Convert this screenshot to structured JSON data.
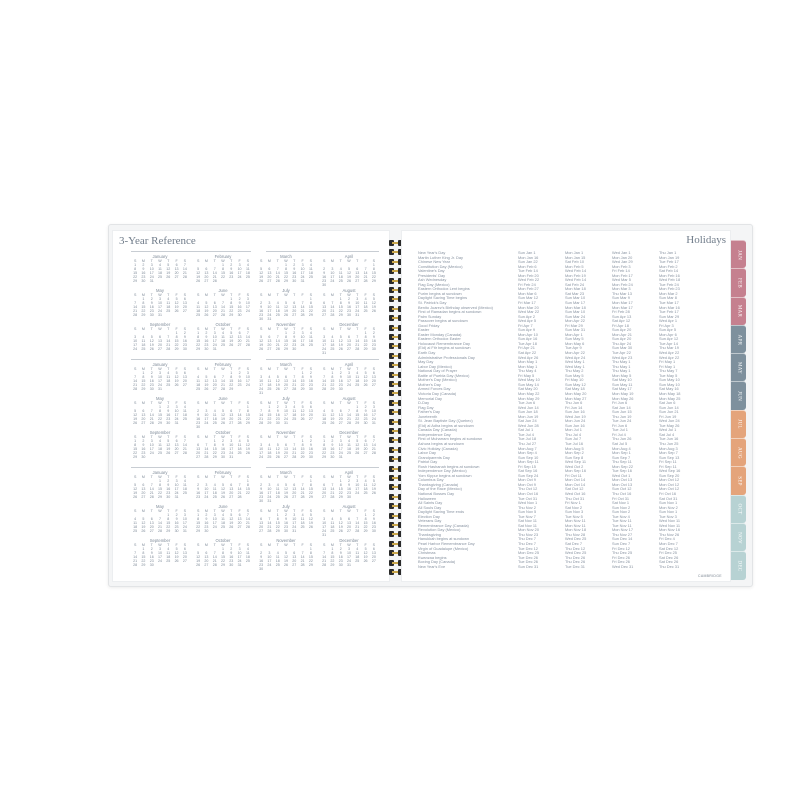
{
  "left_page": {
    "title": "3-Year Reference",
    "weekdays": [
      "S",
      "M",
      "T",
      "W",
      "T",
      "F",
      "S"
    ],
    "month_names": [
      "January",
      "February",
      "March",
      "April",
      "May",
      "June",
      "July",
      "August",
      "September",
      "October",
      "November",
      "December"
    ],
    "calendars": [
      {
        "starts": [
          0,
          3,
          3,
          6,
          1,
          4,
          6,
          2,
          5,
          0,
          3,
          5
        ],
        "days": [
          31,
          28,
          31,
          30,
          31,
          30,
          31,
          31,
          30,
          31,
          30,
          31
        ]
      },
      {
        "starts": [
          1,
          4,
          5,
          1,
          3,
          6,
          1,
          4,
          0,
          2,
          5,
          0
        ],
        "days": [
          31,
          29,
          31,
          30,
          31,
          30,
          31,
          31,
          30,
          31,
          30,
          31
        ]
      },
      {
        "starts": [
          3,
          6,
          6,
          2,
          4,
          0,
          2,
          5,
          1,
          3,
          6,
          1
        ],
        "days": [
          31,
          28,
          31,
          30,
          31,
          30,
          31,
          31,
          30,
          31,
          30,
          31
        ]
      }
    ]
  },
  "right_page": {
    "title": "Holidays",
    "brand": "CAMBRIDGE",
    "holidays": [
      [
        "New Year's Day",
        "Sun Jan 1",
        "Mon Jan 1",
        "Wed Jan 1",
        "Thu Jan 1"
      ],
      [
        "Martin Luther King Jr. Day",
        "Mon Jan 16",
        "Mon Jan 15",
        "Mon Jan 20",
        "Mon Jan 19"
      ],
      [
        "Chinese New Year",
        "Sun Jan 22",
        "Sat Feb 10",
        "Wed Jan 29",
        "Tue Feb 17"
      ],
      [
        "Constitution Day (Mexico)",
        "Mon Feb 6",
        "Mon Feb 5",
        "Mon Feb 3",
        "Mon Feb 2"
      ],
      [
        "Valentine's Day",
        "Tue Feb 14",
        "Wed Feb 14",
        "Fri Feb 14",
        "Sat Feb 14"
      ],
      [
        "Presidents' Day",
        "Mon Feb 20",
        "Mon Feb 19",
        "Mon Feb 17",
        "Mon Feb 16"
      ],
      [
        "Ash Wednesday",
        "Wed Feb 22",
        "Wed Feb 14",
        "Wed Mar 5",
        "Wed Feb 18"
      ],
      [
        "Flag Day (Mexico)",
        "Fri Feb 24",
        "Sat Feb 24",
        "Mon Feb 24",
        "Tue Feb 24"
      ],
      [
        "Eastern Orthodox Lent begins",
        "Mon Feb 27",
        "Mon Mar 18",
        "Mon Mar 3",
        "Mon Feb 23"
      ],
      [
        "Purim begins at sundown",
        "Mon Mar 6",
        "Sat Mar 23",
        "Thu Mar 13",
        "Mon Mar 2"
      ],
      [
        "Daylight Saving Time begins",
        "Sun Mar 12",
        "Sun Mar 10",
        "Sun Mar 9",
        "Sun Mar 8"
      ],
      [
        "St. Patrick's Day",
        "Fri Mar 17",
        "Sun Mar 17",
        "Mon Mar 17",
        "Tue Mar 17"
      ],
      [
        "Benito Juarez's Birthday observed (Mexico)",
        "Mon Mar 20",
        "Mon Mar 18",
        "Mon Mar 17",
        "Mon Mar 16"
      ],
      [
        "First of Ramadan begins at sundown",
        "Wed Mar 22",
        "Sun Mar 10",
        "Fri Feb 28",
        "Tue Feb 17"
      ],
      [
        "Palm Sunday",
        "Sun Apr 2",
        "Sun Mar 24",
        "Sun Apr 13",
        "Sun Mar 29"
      ],
      [
        "Passover begins at sundown",
        "Wed Apr 5",
        "Mon Apr 22",
        "Sat Apr 12",
        "Wed Apr 1"
      ],
      [
        "Good Friday",
        "Fri Apr 7",
        "Fri Mar 29",
        "Fri Apr 18",
        "Fri Apr 3"
      ],
      [
        "Easter",
        "Sun Apr 9",
        "Sun Mar 31",
        "Sun Apr 20",
        "Sun Apr 5"
      ],
      [
        "Easter Monday (Canada)",
        "Mon Apr 10",
        "Mon Apr 1",
        "Mon Apr 21",
        "Mon Apr 6"
      ],
      [
        "Eastern Orthodox Easter",
        "Sun Apr 16",
        "Sun May 5",
        "Sun Apr 20",
        "Sun Apr 12"
      ],
      [
        "Holocaust Remembrance Day",
        "Tue Apr 18",
        "Mon May 6",
        "Thu Apr 24",
        "Tue Apr 14"
      ],
      [
        "(Eid) al Fitr begins at sundown",
        "Fri Apr 21",
        "Tue Apr 9",
        "Sun Mar 30",
        "Thu Mar 19"
      ],
      [
        "Earth Day",
        "Sat Apr 22",
        "Mon Apr 22",
        "Tue Apr 22",
        "Wed Apr 22"
      ],
      [
        "Administrative Professionals Day",
        "Wed Apr 26",
        "Wed Apr 24",
        "Wed Apr 23",
        "Wed Apr 22"
      ],
      [
        "May Day",
        "Mon May 1",
        "Wed May 1",
        "Thu May 1",
        "Fri May 1"
      ],
      [
        "Labor Day (Mexico)",
        "Mon May 1",
        "Wed May 1",
        "Thu May 1",
        "Fri May 1"
      ],
      [
        "National Day of Prayer",
        "Thu May 4",
        "Thu May 2",
        "Thu May 1",
        "Thu May 7"
      ],
      [
        "Battle of Puebla Day (Mexico)",
        "Fri May 5",
        "Sun May 5",
        "Mon May 5",
        "Tue May 5"
      ],
      [
        "Mother's Day (Mexico)",
        "Wed May 10",
        "Fri May 10",
        "Sat May 10",
        "Sun May 10"
      ],
      [
        "Mother's Day",
        "Sun May 14",
        "Sun May 12",
        "Sun May 11",
        "Sun May 10"
      ],
      [
        "Armed Forces Day",
        "Sat May 20",
        "Sat May 18",
        "Sat May 17",
        "Sat May 16"
      ],
      [
        "Victoria Day (Canada)",
        "Mon May 22",
        "Mon May 20",
        "Mon May 19",
        "Mon May 18"
      ],
      [
        "Memorial Day",
        "Mon May 29",
        "Mon May 27",
        "Mon May 26",
        "Mon May 25"
      ],
      [
        "D-Day",
        "Tue Jun 6",
        "Thu Jun 6",
        "Fri Jun 6",
        "Sat Jun 6"
      ],
      [
        "Flag Day",
        "Wed Jun 14",
        "Fri Jun 14",
        "Sat Jun 14",
        "Sun Jun 14"
      ],
      [
        "Father's Day",
        "Sun Jun 18",
        "Sun Jun 16",
        "Sun Jun 15",
        "Sun Jun 21"
      ],
      [
        "Juneteenth",
        "Mon Jun 19",
        "Wed Jun 19",
        "Thu Jun 19",
        "Fri Jun 19"
      ],
      [
        "St. Jean Baptiste Day (Quebec)",
        "Sat Jun 24",
        "Mon Jun 24",
        "Tue Jun 24",
        "Wed Jun 24"
      ],
      [
        "(Eid) al Adha begins at sundown",
        "Wed Jun 28",
        "Sun Jun 16",
        "Fri Jun 6",
        "Tue May 26"
      ],
      [
        "Canada Day (Canada)",
        "Sat Jul 1",
        "Mon Jul 1",
        "Tue Jul 1",
        "Wed Jul 1"
      ],
      [
        "Independence Day",
        "Tue Jul 4",
        "Thu Jul 4",
        "Fri Jul 4",
        "Sat Jul 4"
      ],
      [
        "First of Muharram begins at sundown",
        "Tue Jul 18",
        "Sun Jul 7",
        "Thu Jun 26",
        "Tue Jun 16"
      ],
      [
        "Ashura begins at sundown",
        "Thu Jul 27",
        "Tue Jul 16",
        "Sat Jul 5",
        "Thu Jun 25"
      ],
      [
        "Civic Holiday (Canada)",
        "Mon Aug 7",
        "Mon Aug 5",
        "Mon Aug 4",
        "Mon Aug 3"
      ],
      [
        "Labor Day",
        "Mon Sep 4",
        "Mon Sep 2",
        "Mon Sep 1",
        "Mon Sep 7"
      ],
      [
        "Grandparents Day",
        "Sun Sep 10",
        "Sun Sep 8",
        "Sun Sep 7",
        "Sun Sep 13"
      ],
      [
        "Patriot Day",
        "Mon Sep 11",
        "Wed Sep 11",
        "Thu Sep 11",
        "Fri Sep 11"
      ],
      [
        "Rosh Hashanah begins at sundown",
        "Fri Sep 15",
        "Wed Oct 2",
        "Mon Sep 22",
        "Fri Sep 11"
      ],
      [
        "Independence Day (Mexico)",
        "Sat Sep 16",
        "Mon Sep 16",
        "Tue Sep 16",
        "Wed Sep 16"
      ],
      [
        "Yom Kippur begins at sundown",
        "Sun Sep 24",
        "Fri Oct 11",
        "Wed Oct 1",
        "Sun Sep 20"
      ],
      [
        "Columbus Day",
        "Mon Oct 9",
        "Mon Oct 14",
        "Mon Oct 13",
        "Mon Oct 12"
      ],
      [
        "Thanksgiving (Canada)",
        "Mon Oct 9",
        "Mon Oct 14",
        "Mon Oct 13",
        "Mon Oct 12"
      ],
      [
        "Day of the Race (Mexico)",
        "Thu Oct 12",
        "Sat Oct 12",
        "Sun Oct 12",
        "Mon Oct 12"
      ],
      [
        "National Bosses Day",
        "Mon Oct 16",
        "Wed Oct 16",
        "Thu Oct 16",
        "Fri Oct 16"
      ],
      [
        "Halloween",
        "Tue Oct 31",
        "Thu Oct 31",
        "Fri Oct 31",
        "Sat Oct 31"
      ],
      [
        "All Saints Day",
        "Wed Nov 1",
        "Fri Nov 1",
        "Sat Nov 1",
        "Sun Nov 1"
      ],
      [
        "All Souls Day",
        "Thu Nov 2",
        "Sat Nov 2",
        "Sun Nov 2",
        "Mon Nov 2"
      ],
      [
        "Daylight Saving Time ends",
        "Sun Nov 5",
        "Sun Nov 3",
        "Sun Nov 2",
        "Sun Nov 1"
      ],
      [
        "Election Day",
        "Tue Nov 7",
        "Tue Nov 5",
        "Tue Nov 4",
        "Tue Nov 3"
      ],
      [
        "Veterans Day",
        "Sat Nov 11",
        "Mon Nov 11",
        "Tue Nov 11",
        "Wed Nov 11"
      ],
      [
        "Remembrance Day (Canada)",
        "Sat Nov 11",
        "Mon Nov 11",
        "Tue Nov 11",
        "Wed Nov 11"
      ],
      [
        "Revolution Day (Mexico)",
        "Mon Nov 20",
        "Mon Nov 18",
        "Mon Nov 17",
        "Mon Nov 16"
      ],
      [
        "Thanksgiving",
        "Thu Nov 23",
        "Thu Nov 28",
        "Thu Nov 27",
        "Thu Nov 26"
      ],
      [
        "Hanukkah begins at sundown",
        "Thu Dec 7",
        "Wed Dec 25",
        "Sun Dec 14",
        "Fri Dec 4"
      ],
      [
        "Pearl Harbor Remembrance Day",
        "Thu Dec 7",
        "Sat Dec 7",
        "Sun Dec 7",
        "Mon Dec 7"
      ],
      [
        "Virgin of Guadalupe (Mexico)",
        "Tue Dec 12",
        "Thu Dec 12",
        "Fri Dec 12",
        "Sat Dec 12"
      ],
      [
        "Christmas",
        "Mon Dec 25",
        "Wed Dec 25",
        "Thu Dec 25",
        "Fri Dec 25"
      ],
      [
        "Kwanzaa begins",
        "Tue Dec 26",
        "Thu Dec 26",
        "Fri Dec 26",
        "Sat Dec 26"
      ],
      [
        "Boxing Day (Canada)",
        "Tue Dec 26",
        "Thu Dec 26",
        "Fri Dec 26",
        "Sat Dec 26"
      ],
      [
        "New Year's Eve",
        "Sun Dec 31",
        "Tue Dec 31",
        "Wed Dec 31",
        "Thu Dec 31"
      ]
    ]
  },
  "tabs": [
    {
      "label": "JAN",
      "color": "#c5808f"
    },
    {
      "label": "FEB",
      "color": "#c5808f"
    },
    {
      "label": "MAR",
      "color": "#c5808f"
    },
    {
      "label": "APR",
      "color": "#7e909d"
    },
    {
      "label": "MAY",
      "color": "#7e909d"
    },
    {
      "label": "JUN",
      "color": "#7e909d"
    },
    {
      "label": "JUL",
      "color": "#e4a47b"
    },
    {
      "label": "AUG",
      "color": "#e4a47b"
    },
    {
      "label": "SEP",
      "color": "#e4a47b"
    },
    {
      "label": "OCT",
      "color": "#b7d2d3"
    },
    {
      "label": "NOV",
      "color": "#b7d2d3"
    },
    {
      "label": "DEC",
      "color": "#b7d2d3"
    }
  ]
}
